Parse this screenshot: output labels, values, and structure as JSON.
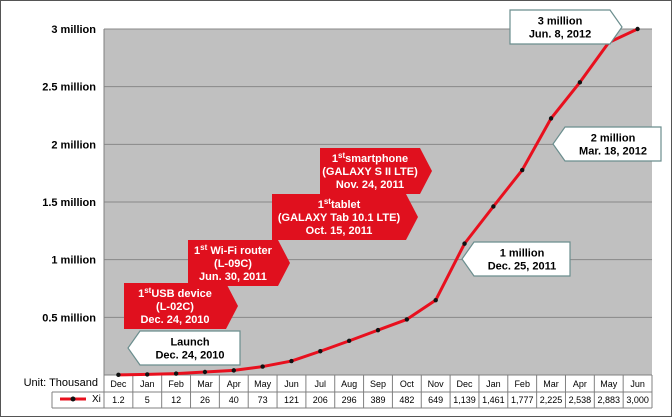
{
  "chart_data": {
    "type": "line",
    "unit_label": "Unit: Thousand",
    "categories": [
      "Dec",
      "Jan",
      "Feb",
      "Mar",
      "Apr",
      "May",
      "Jun",
      "Jul",
      "Aug",
      "Sep",
      "Oct",
      "Nov",
      "Dec",
      "Jan",
      "Feb",
      "Mar",
      "Apr",
      "May",
      "Jun"
    ],
    "series": [
      {
        "name": "Xi",
        "color": "#e8101e",
        "values": [
          1.2,
          5,
          12,
          26,
          40,
          73,
          121,
          206,
          296,
          389,
          482,
          649,
          1139,
          1461,
          1777,
          2225,
          2538,
          2883,
          3000
        ],
        "value_labels": [
          "1.2",
          "5",
          "12",
          "26",
          "40",
          "73",
          "121",
          "206",
          "296",
          "389",
          "482",
          "649",
          "1,139",
          "1,461",
          "1,777",
          "2,225",
          "2,538",
          "2,883",
          "3,000"
        ]
      }
    ],
    "y_ticks": [
      {
        "value": 500,
        "label": "0.5 million"
      },
      {
        "value": 1000,
        "label": "1 million"
      },
      {
        "value": 1500,
        "label": "1.5 million"
      },
      {
        "value": 2000,
        "label": "2 million"
      },
      {
        "value": 2500,
        "label": "2.5 million"
      },
      {
        "value": 3000,
        "label": "3 million"
      }
    ],
    "ylim": [
      0,
      3000
    ],
    "grid": true,
    "legend": "data-table",
    "annotations": [
      {
        "style": "red",
        "point": 3,
        "lines": [
          {
            "text": "USB device",
            "sup": "st",
            "prefix": "1"
          },
          {
            "text": "(L-02C)"
          },
          {
            "text": "Dec. 24, 2010"
          }
        ]
      },
      {
        "style": "red",
        "point": 6,
        "lines": [
          {
            "text": " Wi-Fi router",
            "sup": "st",
            "prefix": "1"
          },
          {
            "text": "(L-09C)"
          },
          {
            "text": "Jun. 30, 2011"
          }
        ]
      },
      {
        "style": "red",
        "point": 10,
        "lines": [
          {
            "text": "tablet",
            "sup": "st",
            "prefix": "1"
          },
          {
            "text": "(GALAXY Tab 10.1 LTE)"
          },
          {
            "text": "Oct. 15, 2011"
          }
        ]
      },
      {
        "style": "red",
        "point": 11,
        "lines": [
          {
            "text": "smartphone",
            "sup": "st",
            "prefix": "1"
          },
          {
            "text": "(GALAXY S II LTE)"
          },
          {
            "text": "Nov. 24, 2011"
          }
        ]
      },
      {
        "style": "white",
        "point": 0,
        "lines": [
          {
            "text": "Launch"
          },
          {
            "text": "Dec. 24, 2010"
          }
        ]
      },
      {
        "style": "white",
        "point": 12,
        "lines": [
          {
            "text": "1 million"
          },
          {
            "text": "Dec. 25, 2011"
          }
        ]
      },
      {
        "style": "white",
        "point": 15,
        "lines": [
          {
            "text": "2 million"
          },
          {
            "text": "Mar. 18, 2012"
          }
        ]
      },
      {
        "style": "white",
        "point": 18,
        "lines": [
          {
            "text": "3 million"
          },
          {
            "text": "Jun. 8, 2012"
          }
        ]
      }
    ]
  }
}
